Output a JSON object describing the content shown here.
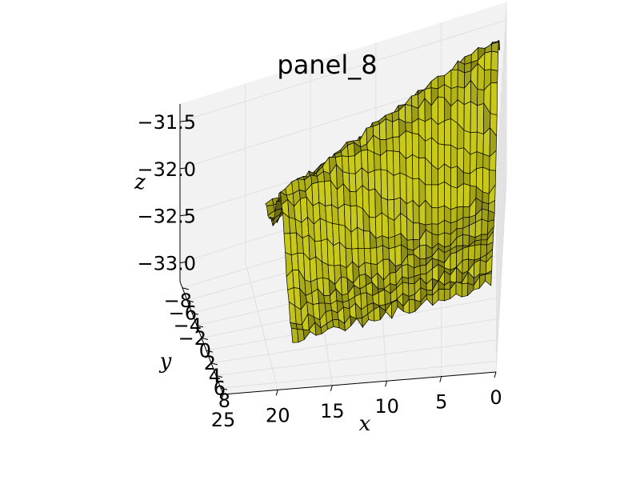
{
  "chart_data": {
    "type": "surface3d",
    "title": "panel_8",
    "xlabel": "x",
    "ylabel": "y",
    "zlabel": "z",
    "x_ticks": [
      "0",
      "5",
      "10",
      "15",
      "20",
      "25"
    ],
    "y_ticks": [
      "−8",
      "−6",
      "−4",
      "−2",
      "0",
      "2",
      "4",
      "6",
      "8"
    ],
    "z_ticks": [
      "−33.0",
      "−32.5",
      "−32.0",
      "−31.5"
    ],
    "xlim": [
      0,
      25
    ],
    "ylim": [
      -9,
      9
    ],
    "zlim": [
      -33.2,
      -31.4
    ],
    "grid": true,
    "surface_color": "#bfbf1a",
    "edge_color": "#000000",
    "pane_color": "#f2f2f2",
    "grid_color": "#e0e0e0"
  }
}
